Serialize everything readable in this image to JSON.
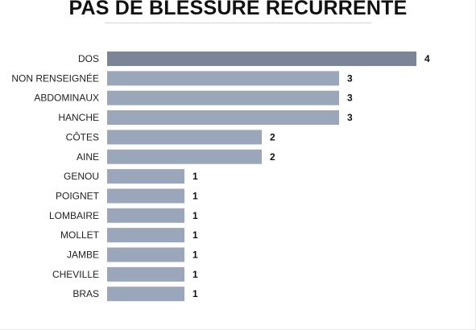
{
  "chart_data": {
    "type": "bar",
    "orientation": "horizontal",
    "title": "PAS DE BLESSURE RÉCURRENTE",
    "categories": [
      "DOS",
      "NON RENSEIGNÉE",
      "ABDOMINAUX",
      "HANCHE",
      "CÔTES",
      "AINE",
      "GENOU",
      "POIGNET",
      "LOMBAIRE",
      "MOLLET",
      "JAMBE",
      "CHEVILLE",
      "BRAS"
    ],
    "values": [
      4,
      3,
      3,
      3,
      2,
      2,
      1,
      1,
      1,
      1,
      1,
      1,
      1
    ],
    "highlighted_category": "DOS",
    "xlim": [
      0,
      4
    ],
    "grid": false,
    "legend": "none",
    "colors": {
      "bar": "#9aa6b9",
      "bar_highlight": "#7b8597",
      "text": "#222222"
    }
  }
}
